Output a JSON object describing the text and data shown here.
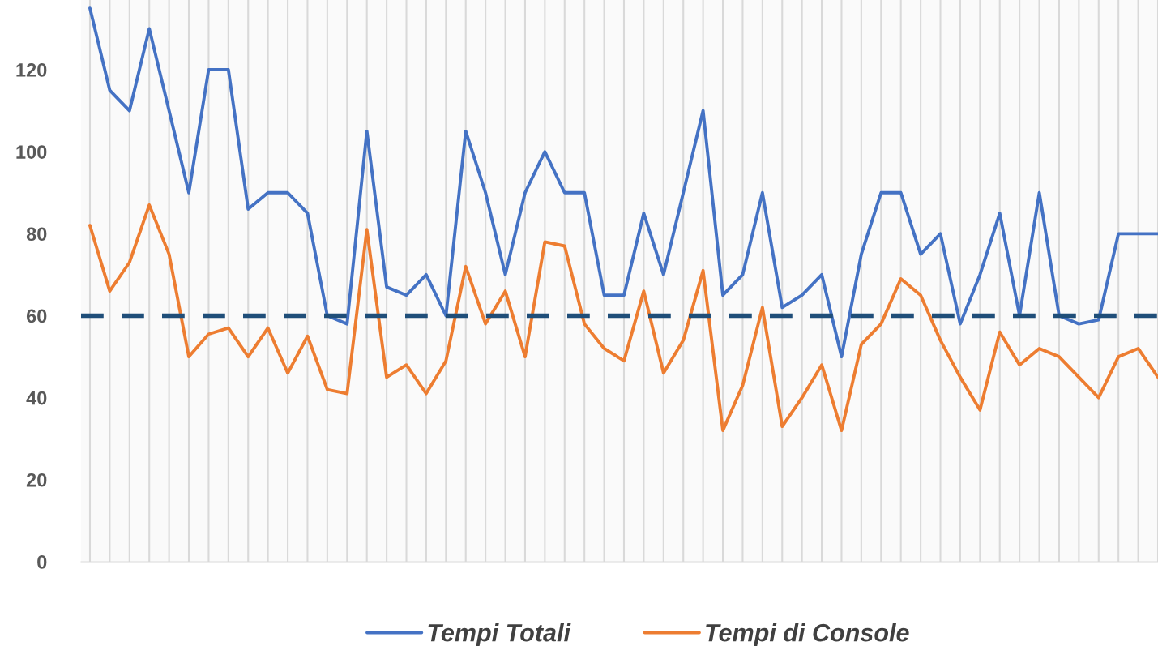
{
  "chart_data": {
    "type": "line",
    "categories": [
      null,
      null,
      null,
      null,
      null,
      null,
      null,
      null,
      null,
      null,
      null,
      null,
      null,
      null,
      null,
      null,
      null,
      null,
      null,
      null,
      null,
      null,
      null,
      null,
      null,
      null,
      null,
      null,
      null,
      null,
      null,
      null,
      null,
      null,
      null,
      null,
      null,
      null,
      null,
      null,
      null,
      null,
      null,
      null,
      null,
      null,
      null,
      null,
      null,
      null,
      null,
      null,
      null,
      null,
      null
    ],
    "series": [
      {
        "name": "Tempi Totali",
        "color": "#4472c4",
        "values": [
          135,
          115,
          110,
          130,
          110,
          90,
          120,
          120,
          86,
          90,
          90,
          85,
          60,
          58,
          105,
          67,
          65,
          70,
          60,
          105,
          90,
          70,
          90,
          100,
          90,
          90,
          65,
          65,
          85,
          70,
          90,
          110,
          65,
          70,
          90,
          62,
          65,
          70,
          50,
          75,
          90,
          90,
          75,
          80,
          58,
          70,
          85,
          60,
          90,
          60,
          58,
          59,
          80,
          80,
          80
        ]
      },
      {
        "name": "Tempi di Console",
        "color": "#ed7d31",
        "values": [
          82,
          66,
          73,
          87,
          75,
          50,
          55.5,
          57,
          50,
          57,
          46,
          55,
          42,
          41,
          81,
          45,
          48,
          41,
          49,
          72,
          58,
          66,
          50,
          78,
          77,
          58,
          52,
          49,
          66,
          46,
          54,
          71,
          32,
          43,
          62,
          33,
          40,
          48,
          32,
          53,
          58,
          69,
          65,
          54,
          45,
          37,
          56,
          48,
          52,
          50,
          45,
          40,
          50,
          52,
          45
        ]
      }
    ],
    "ylim": [
      0,
      137
    ],
    "yticks": [
      0,
      20,
      40,
      60,
      80,
      100,
      120
    ],
    "ref_lines": [
      {
        "axis": "y",
        "value": 60,
        "color": "#1f4e79",
        "line_style": "dashed"
      }
    ],
    "grid": "x",
    "legend": "bottom",
    "marker": "none",
    "line_style": "solid"
  }
}
